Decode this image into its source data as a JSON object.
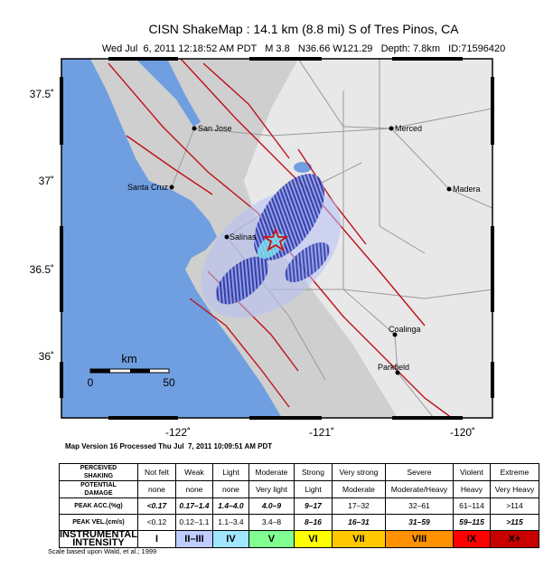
{
  "header": {
    "title": "CISN ShakeMap : 14.1 km (8.8 mi) S of Tres Pinos, CA",
    "subtitle": "Wed Jul  6, 2011 12:18:52 AM PDT   M 3.8   N36.66 W121.29   Depth: 7.8km   ID:71596420"
  },
  "map": {
    "lat_labels": [
      "37.5˚",
      "37˚",
      "36.5˚",
      "36˚"
    ],
    "lon_labels": [
      "-122˚",
      "-121˚",
      "-120˚"
    ],
    "cities": [
      "San Jose",
      "Merced",
      "Santa Cruz",
      "Madera",
      "Salinas",
      "Coalinga",
      "Parkfield"
    ],
    "scale": {
      "unit": "km",
      "start": "0",
      "end": "50"
    }
  },
  "footer": "Map Version 16 Processed Thu Jul  7, 2011 10:09:51 AM PDT",
  "legend": {
    "rows": [
      {
        "label": [
          "PERCEIVED",
          "SHAKING"
        ],
        "cells": [
          "Not felt",
          "Weak",
          "Light",
          "Moderate",
          "Strong",
          "Very strong",
          "Severe",
          "Violent",
          "Extreme"
        ]
      },
      {
        "label": [
          "POTENTIAL",
          "DAMAGE"
        ],
        "cells": [
          "none",
          "none",
          "none",
          "Very light",
          "Light",
          "Moderate",
          "Moderate/Heavy",
          "Heavy",
          "Very Heavy"
        ]
      },
      {
        "label": [
          "PEAK ACC.(%g)"
        ],
        "cells": [
          "<0.17",
          "0.17–1.4",
          "1.4–4.0",
          "4.0–9",
          "9–17",
          "17–32",
          "32–61",
          "61–114",
          ">114"
        ]
      },
      {
        "label": [
          "PEAK VEL.(cm/s)"
        ],
        "cells": [
          "<0.12",
          "0.12–1.1",
          "1.1–3.4",
          "3.4–8",
          "8–16",
          "16–31",
          "31–59",
          "59–115",
          ">115"
        ]
      },
      {
        "label": [
          "INSTRUMENTAL",
          "INTENSITY"
        ],
        "cells": [
          "I",
          "II–III",
          "IV",
          "V",
          "VI",
          "VII",
          "VIII",
          "IX",
          "X+"
        ]
      }
    ],
    "note": "Scale based upon Wald, et al.; 1999"
  }
}
